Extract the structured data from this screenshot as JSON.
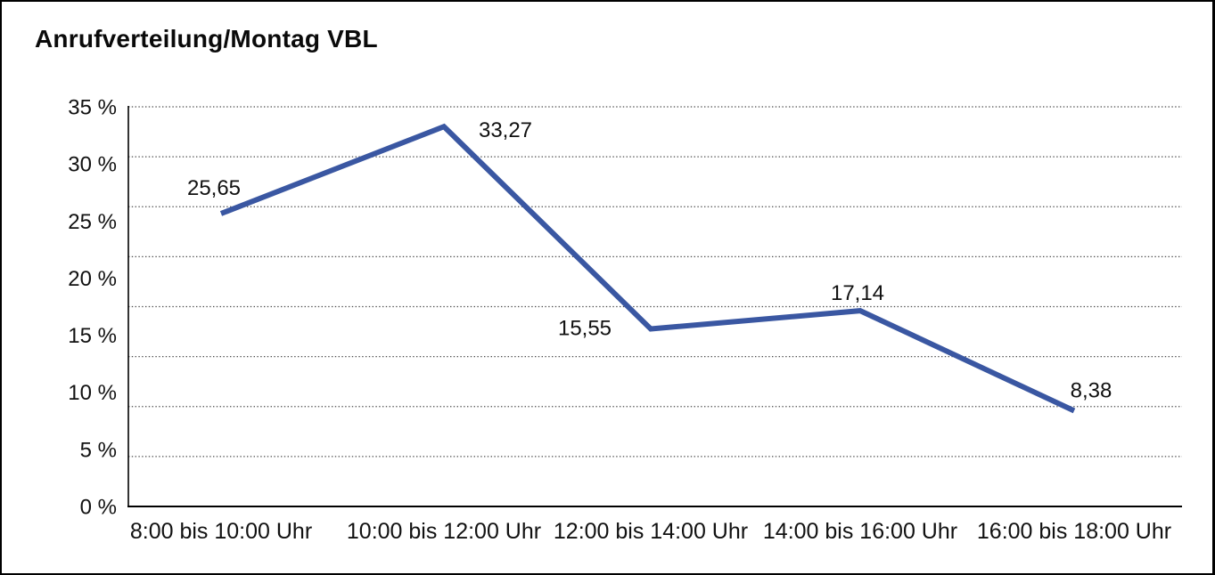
{
  "page": {
    "background_color": "#ffffff",
    "frame_border_color": "#000000"
  },
  "chart_data": {
    "type": "line",
    "title": "Anrufverteilung/Montag VBL",
    "categories": [
      "8:00 bis 10:00 Uhr",
      "10:00 bis 12:00 Uhr",
      "12:00 bis 14:00 Uhr",
      "14:00 bis 16:00 Uhr",
      "16:00 bis 18:00 Uhr"
    ],
    "values": [
      25.65,
      33.27,
      15.55,
      17.14,
      8.38
    ],
    "value_labels": [
      "25,65",
      "33,27",
      "15,55",
      "17,14",
      "8,38"
    ],
    "xlabel": "",
    "ylabel": "",
    "ylim": [
      0,
      35
    ],
    "y_tick_values": [
      0,
      5,
      10,
      15,
      20,
      25,
      30,
      35
    ],
    "y_tick_labels": [
      "0 %",
      "5 %",
      "10 %",
      "15 %",
      "20 %",
      "25 %",
      "30 %",
      "35 %"
    ],
    "grid": "horizontal-dotted",
    "grid_line_count": 9,
    "legend": "none",
    "line_color": "#3a57a2",
    "axis_color": "#000000",
    "gridline_color": "#4c4c4c",
    "text_color": "#111111"
  }
}
